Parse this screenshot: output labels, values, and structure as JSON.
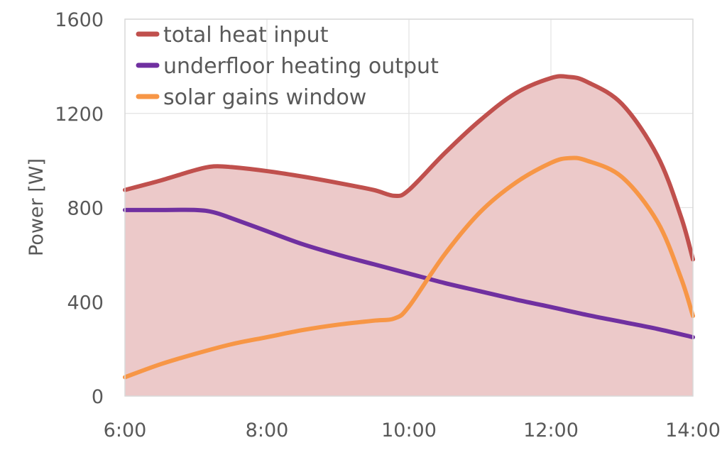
{
  "chart_data": {
    "type": "line",
    "title": "",
    "xlabel": "",
    "ylabel": "Power [W]",
    "xlim": [
      "6:00",
      "14:00"
    ],
    "ylim": [
      0,
      1600
    ],
    "xticks": [
      "6:00",
      "8:00",
      "10:00",
      "12:00",
      "14:00"
    ],
    "yticks": [
      0,
      400,
      800,
      1200,
      1600
    ],
    "grid": true,
    "legend_placement": "top-left",
    "series": [
      {
        "name": "total heat input",
        "color": "#c0504d",
        "fill": "#ecc9c9",
        "points": [
          [
            "6:00",
            875
          ],
          [
            "6:30",
            915
          ],
          [
            "7:00",
            960
          ],
          [
            "7:15",
            975
          ],
          [
            "7:30",
            972
          ],
          [
            "8:00",
            955
          ],
          [
            "8:30",
            932
          ],
          [
            "9:00",
            905
          ],
          [
            "9:30",
            875
          ],
          [
            "9:48",
            850
          ],
          [
            "10:00",
            875
          ],
          [
            "10:30",
            1030
          ],
          [
            "11:00",
            1170
          ],
          [
            "11:30",
            1285
          ],
          [
            "12:00",
            1350
          ],
          [
            "12:15",
            1355
          ],
          [
            "12:30",
            1335
          ],
          [
            "13:00",
            1240
          ],
          [
            "13:30",
            1020
          ],
          [
            "13:50",
            760
          ],
          [
            "14:00",
            580
          ]
        ]
      },
      {
        "name": "underfloor heating output",
        "color": "#7030a0",
        "points": [
          [
            "6:00",
            790
          ],
          [
            "6:30",
            790
          ],
          [
            "7:00",
            790
          ],
          [
            "7:15",
            780
          ],
          [
            "7:30",
            755
          ],
          [
            "8:00",
            700
          ],
          [
            "8:30",
            645
          ],
          [
            "9:00",
            600
          ],
          [
            "9:30",
            560
          ],
          [
            "10:00",
            520
          ],
          [
            "10:30",
            480
          ],
          [
            "11:00",
            445
          ],
          [
            "11:30",
            410
          ],
          [
            "12:00",
            378
          ],
          [
            "12:30",
            345
          ],
          [
            "13:00",
            315
          ],
          [
            "13:30",
            285
          ],
          [
            "14:00",
            250
          ]
        ]
      },
      {
        "name": "solar gains window",
        "color": "#f79646",
        "points": [
          [
            "6:00",
            80
          ],
          [
            "6:30",
            135
          ],
          [
            "7:00",
            180
          ],
          [
            "7:30",
            220
          ],
          [
            "8:00",
            250
          ],
          [
            "8:30",
            280
          ],
          [
            "9:00",
            303
          ],
          [
            "9:30",
            320
          ],
          [
            "9:48",
            330
          ],
          [
            "10:00",
            380
          ],
          [
            "10:30",
            600
          ],
          [
            "11:00",
            780
          ],
          [
            "11:30",
            905
          ],
          [
            "12:00",
            990
          ],
          [
            "12:15",
            1010
          ],
          [
            "12:30",
            1000
          ],
          [
            "13:00",
            930
          ],
          [
            "13:30",
            740
          ],
          [
            "13:50",
            500
          ],
          [
            "14:00",
            340
          ]
        ]
      }
    ]
  }
}
